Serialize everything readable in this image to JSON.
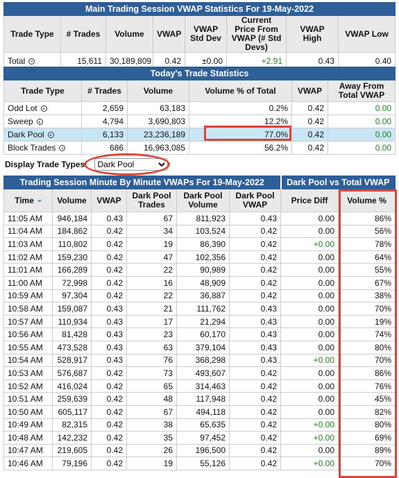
{
  "main_stats": {
    "title": "Main Trading Session VWAP Statistics For 19-May-2022",
    "columns": [
      "Trade Type",
      "# Trades",
      "Volume",
      "VWAP",
      "VWAP Std Dev",
      "Current Price From VWAP (# Std Devs)",
      "VWAP High",
      "VWAP Low"
    ],
    "rows": [
      [
        "Total",
        "15,611",
        "30,189,809",
        "0.42",
        "±0.00",
        "+2.91",
        "0.43",
        "0.40"
      ]
    ]
  },
  "trade_stats": {
    "title": "Today's Trade Statistics",
    "columns": [
      "Trade Type",
      "# Trades",
      "Volume",
      "Volume % of Total",
      "VWAP",
      "Away From Total VWAP"
    ],
    "rows": [
      [
        "Odd Lot",
        "2,659",
        "63,183",
        "0.2%",
        "0.42",
        "0.00"
      ],
      [
        "Sweep",
        "4,794",
        "3,690,803",
        "12.2%",
        "0.42",
        "0.00"
      ],
      [
        "Dark Pool",
        "6,133",
        "23,236,189",
        "77.0%",
        "0.42",
        "0.00"
      ],
      [
        "Block Trades",
        "686",
        "16,963,085",
        "56.2%",
        "0.42",
        "0.00"
      ]
    ]
  },
  "display_filter": {
    "label": "Display Trade Types:",
    "selected": "Dark Pool"
  },
  "minute_vwaps": {
    "title": "Trading Session Minute By Minute VWAPs For 19-May-2022",
    "subtitle": "Dark Pool vs Total VWAP",
    "columns": [
      "Time",
      "Volume",
      "VWAP",
      "Dark Pool Trades",
      "Dark Pool Volume",
      "Dark Pool VWAP",
      "Price Diff",
      "Volume %"
    ],
    "rows": [
      [
        "11:05 AM",
        "946,184",
        "0.43",
        "67",
        "811,923",
        "0.43",
        "0.00",
        "86%"
      ],
      [
        "11:04 AM",
        "184,862",
        "0.42",
        "34",
        "103,524",
        "0.42",
        "0.00",
        "56%"
      ],
      [
        "11:03 AM",
        "110,802",
        "0.42",
        "19",
        "86,390",
        "0.42",
        "+0.00",
        "78%"
      ],
      [
        "11:02 AM",
        "159,230",
        "0.42",
        "47",
        "102,356",
        "0.42",
        "0.00",
        "64%"
      ],
      [
        "11:01 AM",
        "166,289",
        "0.42",
        "22",
        "90,989",
        "0.42",
        "0.00",
        "55%"
      ],
      [
        "11:00 AM",
        "72,998",
        "0.42",
        "16",
        "48,909",
        "0.42",
        "0.00",
        "67%"
      ],
      [
        "10:59 AM",
        "97,304",
        "0.42",
        "22",
        "36,887",
        "0.42",
        "0.00",
        "38%"
      ],
      [
        "10:58 AM",
        "159,087",
        "0.43",
        "21",
        "111,762",
        "0.43",
        "0.00",
        "70%"
      ],
      [
        "10:57 AM",
        "110,934",
        "0.43",
        "17",
        "21,294",
        "0.43",
        "0.00",
        "19%"
      ],
      [
        "10:56 AM",
        "81,428",
        "0.43",
        "23",
        "60,170",
        "0.43",
        "0.00",
        "74%"
      ],
      [
        "10:55 AM",
        "473,528",
        "0.43",
        "63",
        "379,104",
        "0.43",
        "0.00",
        "80%"
      ],
      [
        "10:54 AM",
        "528,917",
        "0.43",
        "76",
        "368,298",
        "0.43",
        "+0.00",
        "70%"
      ],
      [
        "10:53 AM",
        "576,687",
        "0.42",
        "73",
        "493,607",
        "0.42",
        "0.00",
        "86%"
      ],
      [
        "10:52 AM",
        "416,024",
        "0.42",
        "65",
        "314,463",
        "0.42",
        "0.00",
        "76%"
      ],
      [
        "10:51 AM",
        "259,639",
        "0.42",
        "48",
        "117,948",
        "0.42",
        "0.00",
        "45%"
      ],
      [
        "10:50 AM",
        "605,117",
        "0.42",
        "67",
        "494,118",
        "0.42",
        "0.00",
        "82%"
      ],
      [
        "10:49 AM",
        "82,315",
        "0.42",
        "38",
        "65,635",
        "0.42",
        "+0.00",
        "80%"
      ],
      [
        "10:48 AM",
        "142,232",
        "0.42",
        "35",
        "97,452",
        "0.42",
        "+0.00",
        "69%"
      ],
      [
        "10:47 AM",
        "219,605",
        "0.42",
        "26",
        "196,500",
        "0.42",
        "0.00",
        "89%"
      ],
      [
        "10:46 AM",
        "79,196",
        "0.42",
        "19",
        "55,126",
        "0.42",
        "+0.00",
        "70%"
      ]
    ]
  }
}
